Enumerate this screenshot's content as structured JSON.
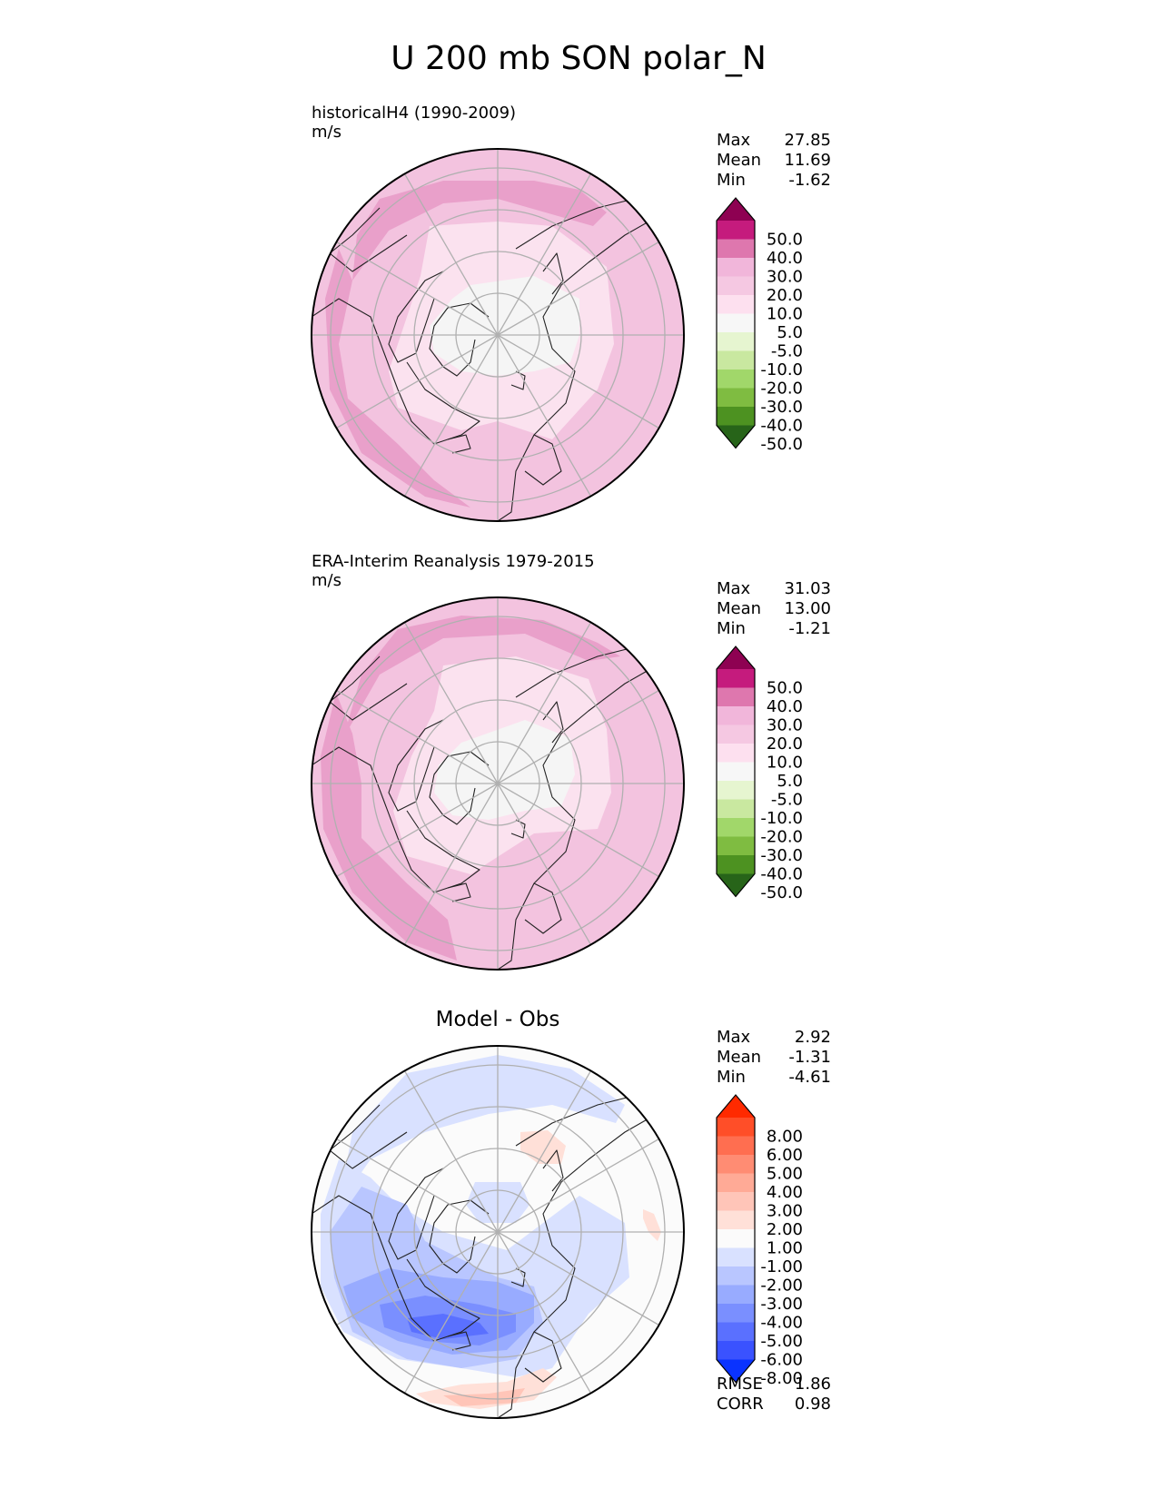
{
  "title": "U 200 mb SON polar_N",
  "chart_data": [
    {
      "type": "heatmap",
      "panel": "test",
      "title": "historicalH4 (1990-2009)",
      "units": "m/s",
      "stats": [
        {
          "label": "Max",
          "value": "27.85"
        },
        {
          "label": "Mean",
          "value": "11.69"
        },
        {
          "label": "Min",
          "value": "-1.62"
        }
      ],
      "colorbar": {
        "ticks": [
          "50.0",
          "40.0",
          "30.0",
          "20.0",
          "10.0",
          "5.0",
          "-5.0",
          "-10.0",
          "-20.0",
          "-30.0",
          "-40.0",
          "-50.0"
        ],
        "colors": [
          "#8e0152",
          "#c51b7d",
          "#de77ae",
          "#f1b6da",
          "#f5c8e2",
          "#fde0ef",
          "#f7f7f7",
          "#e6f5d0",
          "#c9e8a0",
          "#a1d76a",
          "#7fbc41",
          "#4d9221",
          "#276419"
        ]
      },
      "background": "#f3c3df",
      "blobs": [
        {
          "c": "#e9a0ca",
          "pts": [
            [
              -155,
              -110
            ],
            [
              -130,
              -150
            ],
            [
              -60,
              -170
            ],
            [
              40,
              -170
            ],
            [
              90,
              -160
            ],
            [
              120,
              -135
            ],
            [
              105,
              -120
            ],
            [
              0,
              -150
            ],
            [
              -60,
              -145
            ],
            [
              -120,
              -115
            ],
            [
              -160,
              -60
            ]
          ]
        },
        {
          "c": "#e9a0ca",
          "pts": [
            [
              -190,
              -40
            ],
            [
              -175,
              -95
            ],
            [
              -160,
              -60
            ],
            [
              -175,
              10
            ],
            [
              -165,
              70
            ],
            [
              -110,
              120
            ],
            [
              -70,
              160
            ],
            [
              -30,
              190
            ],
            [
              -80,
              178
            ],
            [
              -150,
              130
            ],
            [
              -185,
              60
            ]
          ]
        },
        {
          "c": "#fbe2ef",
          "pts": [
            [
              -75,
              -120
            ],
            [
              0,
              -125
            ],
            [
              60,
              -120
            ],
            [
              120,
              -75
            ],
            [
              128,
              10
            ],
            [
              110,
              60
            ],
            [
              60,
              115
            ],
            [
              0,
              95
            ],
            [
              -40,
              105
            ],
            [
              -110,
              80
            ],
            [
              -120,
              40
            ],
            [
              -100,
              -20
            ],
            [
              -85,
              -65
            ]
          ]
        },
        {
          "c": "#f5f5f5",
          "pts": [
            [
              -30,
              -55
            ],
            [
              40,
              -65
            ],
            [
              90,
              -40
            ],
            [
              90,
              0
            ],
            [
              80,
              30
            ],
            [
              40,
              40
            ],
            [
              0,
              45
            ],
            [
              -40,
              40
            ],
            [
              -70,
              20
            ],
            [
              -75,
              -10
            ],
            [
              -50,
              -40
            ]
          ]
        }
      ]
    },
    {
      "type": "heatmap",
      "panel": "reference",
      "title": "ERA-Interim Reanalysis 1979-2015",
      "units": "m/s",
      "stats": [
        {
          "label": "Max",
          "value": "31.03"
        },
        {
          "label": "Mean",
          "value": "13.00"
        },
        {
          "label": "Min",
          "value": "-1.21"
        }
      ],
      "colorbar": {
        "ticks": [
          "50.0",
          "40.0",
          "30.0",
          "20.0",
          "10.0",
          "5.0",
          "-5.0",
          "-10.0",
          "-20.0",
          "-30.0",
          "-40.0",
          "-50.0"
        ],
        "colors": [
          "#8e0152",
          "#c51b7d",
          "#de77ae",
          "#f1b6da",
          "#f5c8e2",
          "#fde0ef",
          "#f7f7f7",
          "#e6f5d0",
          "#c9e8a0",
          "#a1d76a",
          "#7fbc41",
          "#4d9221",
          "#276419"
        ]
      },
      "background": "#f3c3df",
      "blobs": [
        {
          "c": "#e9a0ca",
          "pts": [
            [
              -150,
              -120
            ],
            [
              -110,
              -170
            ],
            [
              -40,
              -185
            ],
            [
              50,
              -180
            ],
            [
              110,
              -155
            ],
            [
              135,
              -140
            ],
            [
              100,
              -135
            ],
            [
              30,
              -165
            ],
            [
              -60,
              -160
            ],
            [
              -130,
              -120
            ],
            [
              -170,
              -50
            ]
          ]
        },
        {
          "c": "#e9a0ca",
          "pts": [
            [
              -195,
              -30
            ],
            [
              -178,
              -100
            ],
            [
              -160,
              -55
            ],
            [
              -150,
              0
            ],
            [
              -150,
              60
            ],
            [
              -100,
              110
            ],
            [
              -55,
              150
            ],
            [
              -45,
              195
            ],
            [
              -100,
              175
            ],
            [
              -160,
              120
            ],
            [
              -192,
              50
            ]
          ]
        },
        {
          "c": "#fbe2ef",
          "pts": [
            [
              -60,
              -130
            ],
            [
              20,
              -140
            ],
            [
              100,
              -115
            ],
            [
              120,
              -60
            ],
            [
              125,
              10
            ],
            [
              110,
              50
            ],
            [
              40,
              55
            ],
            [
              -30,
              100
            ],
            [
              -100,
              80
            ],
            [
              -115,
              30
            ],
            [
              -95,
              -30
            ],
            [
              -70,
              -80
            ]
          ]
        },
        {
          "c": "#f5f5f5",
          "pts": [
            [
              -40,
              -45
            ],
            [
              30,
              -70
            ],
            [
              80,
              -50
            ],
            [
              85,
              -10
            ],
            [
              70,
              25
            ],
            [
              30,
              30
            ],
            [
              -10,
              40
            ],
            [
              -50,
              35
            ],
            [
              -70,
              10
            ],
            [
              -65,
              -20
            ]
          ]
        }
      ]
    },
    {
      "type": "heatmap",
      "panel": "difference",
      "title": "Model - Obs",
      "units": "",
      "stats": [
        {
          "label": "Max",
          "value": "2.92"
        },
        {
          "label": "Mean",
          "value": "-1.31"
        },
        {
          "label": "Min",
          "value": "-4.61"
        }
      ],
      "extra_stats": [
        {
          "label": "RMSE",
          "value": "1.86"
        },
        {
          "label": "CORR",
          "value": "0.98"
        }
      ],
      "colorbar": {
        "ticks": [
          "8.00",
          "6.00",
          "5.00",
          "4.00",
          "3.00",
          "2.00",
          "1.00",
          "-1.00",
          "-2.00",
          "-3.00",
          "-4.00",
          "-5.00",
          "-6.00",
          "-8.00"
        ],
        "colors": [
          "#ff2a00",
          "#ff4e28",
          "#ff6e50",
          "#ff8c73",
          "#ffaa96",
          "#ffc5b8",
          "#ffe0d8",
          "#fbfbfb",
          "#d9e1ff",
          "#b9c6ff",
          "#98abff",
          "#7a8fff",
          "#5a70ff",
          "#3a52ff",
          "#0a33ff"
        ]
      },
      "background": "#fbfbfb",
      "blobs": [
        {
          "c": "#d9e1ff",
          "pts": [
            [
              -160,
              -110
            ],
            [
              -100,
              -175
            ],
            [
              0,
              -195
            ],
            [
              80,
              -180
            ],
            [
              140,
              -140
            ],
            [
              130,
              -120
            ],
            [
              60,
              -140
            ],
            [
              -10,
              -130
            ],
            [
              -80,
              -110
            ],
            [
              -140,
              -80
            ],
            [
              -175,
              -30
            ]
          ]
        },
        {
          "c": "#d9e1ff",
          "pts": [
            [
              -195,
              -20
            ],
            [
              -175,
              -80
            ],
            [
              -140,
              -60
            ],
            [
              -110,
              -30
            ],
            [
              -60,
              0
            ],
            [
              10,
              20
            ],
            [
              90,
              -40
            ],
            [
              140,
              -10
            ],
            [
              145,
              50
            ],
            [
              100,
              90
            ],
            [
              60,
              150
            ],
            [
              20,
              160
            ],
            [
              -40,
              150
            ],
            [
              -110,
              140
            ],
            [
              -170,
              110
            ],
            [
              -195,
              60
            ]
          ]
        },
        {
          "c": "#b9c6ff",
          "pts": [
            [
              -185,
              0
            ],
            [
              -150,
              -50
            ],
            [
              -100,
              -30
            ],
            [
              -80,
              10
            ],
            [
              -40,
              30
            ],
            [
              0,
              50
            ],
            [
              40,
              60
            ],
            [
              50,
              100
            ],
            [
              20,
              140
            ],
            [
              -40,
              150
            ],
            [
              -100,
              140
            ],
            [
              -160,
              110
            ],
            [
              -180,
              50
            ]
          ]
        },
        {
          "c": "#98abff",
          "pts": [
            [
              -170,
              60
            ],
            [
              -120,
              40
            ],
            [
              -60,
              50
            ],
            [
              0,
              55
            ],
            [
              40,
              70
            ],
            [
              40,
              100
            ],
            [
              10,
              130
            ],
            [
              -50,
              135
            ],
            [
              -110,
              120
            ],
            [
              -160,
              95
            ]
          ]
        },
        {
          "c": "#7a8fff",
          "pts": [
            [
              -130,
              80
            ],
            [
              -80,
              70
            ],
            [
              -20,
              80
            ],
            [
              20,
              90
            ],
            [
              20,
              110
            ],
            [
              -20,
              125
            ],
            [
              -80,
              120
            ],
            [
              -125,
              105
            ]
          ]
        },
        {
          "c": "#5a70ff",
          "pts": [
            [
              -100,
              95
            ],
            [
              -60,
              90
            ],
            [
              -20,
              100
            ],
            [
              -10,
              112
            ],
            [
              -60,
              118
            ],
            [
              -95,
              110
            ]
          ]
        },
        {
          "c": "#d9e1ff",
          "pts": [
            [
              -25,
              -55
            ],
            [
              25,
              -55
            ],
            [
              35,
              -30
            ],
            [
              20,
              -10
            ],
            [
              -20,
              -10
            ],
            [
              -35,
              -30
            ]
          ]
        },
        {
          "c": "#ffe0d8",
          "pts": [
            [
              25,
              -110
            ],
            [
              55,
              -112
            ],
            [
              75,
              -95
            ],
            [
              70,
              -75
            ],
            [
              45,
              -75
            ],
            [
              25,
              -90
            ]
          ]
        },
        {
          "c": "#ffe0d8",
          "pts": [
            [
              160,
              -25
            ],
            [
              172,
              -20
            ],
            [
              180,
              0
            ],
            [
              176,
              10
            ],
            [
              166,
              0
            ],
            [
              160,
              -15
            ]
          ]
        },
        {
          "c": "#ffe0d8",
          "pts": [
            [
              -90,
              178
            ],
            [
              -40,
              168
            ],
            [
              10,
              165
            ],
            [
              50,
              150
            ],
            [
              65,
              160
            ],
            [
              40,
              185
            ],
            [
              -20,
              195
            ],
            [
              -75,
              188
            ]
          ]
        },
        {
          "c": "#ffc5b8",
          "pts": [
            [
              -60,
              180
            ],
            [
              -10,
              178
            ],
            [
              30,
              172
            ],
            [
              20,
              188
            ],
            [
              -40,
              192
            ]
          ]
        }
      ]
    }
  ]
}
